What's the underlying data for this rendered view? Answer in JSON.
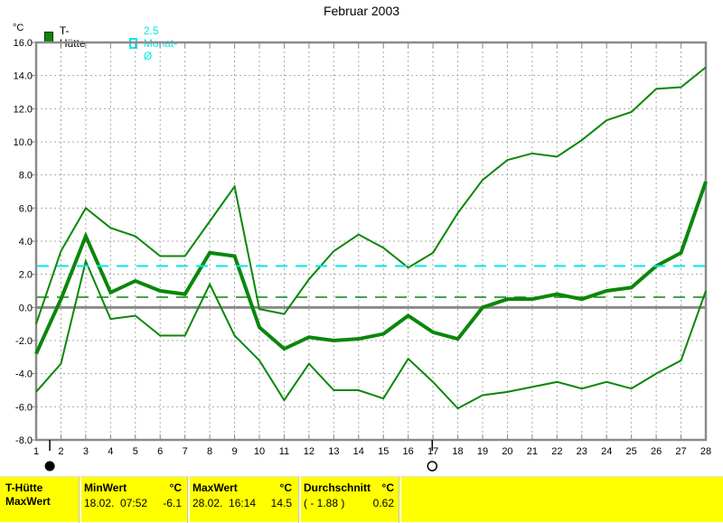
{
  "title": "Februar 2003",
  "y_axis": {
    "unit": "°C"
  },
  "legend": {
    "items": [
      {
        "label": "T-Hütte",
        "color": "#0a870a",
        "style": "filled"
      },
      {
        "label": "2.5 Monat-Ø",
        "color": "#00e8e8",
        "style": "open"
      }
    ]
  },
  "chart_data": {
    "type": "line",
    "title": "Februar 2003",
    "xlabel": "",
    "ylabel": "°C",
    "xlim": [
      1,
      28
    ],
    "ylim": [
      -8,
      16
    ],
    "ytick_step": 2,
    "grid": "dashed, both axes",
    "legend_position": "top-left",
    "x": [
      1,
      2,
      3,
      4,
      5,
      6,
      7,
      8,
      9,
      10,
      11,
      12,
      13,
      14,
      15,
      16,
      17,
      18,
      19,
      20,
      21,
      22,
      23,
      24,
      25,
      26,
      27,
      28
    ],
    "series": [
      {
        "name": "upper",
        "color": "#0a870a",
        "width": 2,
        "values": [
          -1.0,
          3.4,
          6.0,
          4.8,
          4.3,
          3.1,
          3.1,
          5.2,
          7.3,
          -0.1,
          -0.4,
          1.7,
          3.4,
          4.4,
          3.6,
          2.4,
          3.3,
          5.7,
          7.7,
          8.9,
          9.3,
          9.1,
          10.1,
          11.3,
          11.8,
          13.2,
          13.3,
          14.5
        ]
      },
      {
        "name": "lower",
        "color": "#0a870a",
        "width": 2,
        "values": [
          -5.1,
          -3.4,
          2.8,
          -0.7,
          -0.5,
          -1.7,
          -1.7,
          1.4,
          -1.7,
          -3.2,
          -5.6,
          -3.4,
          -5.0,
          -5.0,
          -5.5,
          -3.1,
          -4.5,
          -6.1,
          -5.3,
          -5.1,
          -4.8,
          -4.5,
          -4.9,
          -4.5,
          -4.9,
          -4.0,
          -3.2,
          1.0
        ]
      },
      {
        "name": "main",
        "color": "#0a870a",
        "width": 4,
        "values": [
          -2.8,
          0.5,
          4.3,
          0.9,
          1.6,
          1.0,
          0.8,
          3.3,
          3.1,
          -1.2,
          -2.5,
          -1.8,
          -2.0,
          -1.9,
          -1.6,
          -0.5,
          -1.5,
          -1.9,
          0.0,
          0.5,
          0.5,
          0.8,
          0.5,
          1.0,
          1.2,
          2.5,
          3.3,
          7.6
        ]
      }
    ],
    "reference_lines": [
      {
        "label": "2.5 Monat-Ø",
        "value": 2.5,
        "color": "#00e8e8",
        "width": 2,
        "dashed": true
      },
      {
        "label": "Durchschnitt",
        "value": 0.62,
        "color": "#0a870a",
        "width": 1.5,
        "dashed": true
      }
    ],
    "moon_markers": [
      {
        "symbol": "new-moon",
        "day": 1.55
      },
      {
        "symbol": "full-moon",
        "day": 16.97
      }
    ]
  },
  "status_bar": {
    "series_line1": "T-Hütte",
    "series_line2": "MaxWert",
    "min": {
      "label": "MinWert",
      "unit": "°C",
      "datetime": "18.02.  07:52",
      "value": "-6.1"
    },
    "max": {
      "label": "MaxWert",
      "unit": "°C",
      "datetime": "28.02.  16:14",
      "value": "14.5"
    },
    "avg": {
      "label": "Durchschnitt",
      "unit": "°C",
      "datetime": "( - 1.88 )",
      "value": "0.62"
    }
  }
}
